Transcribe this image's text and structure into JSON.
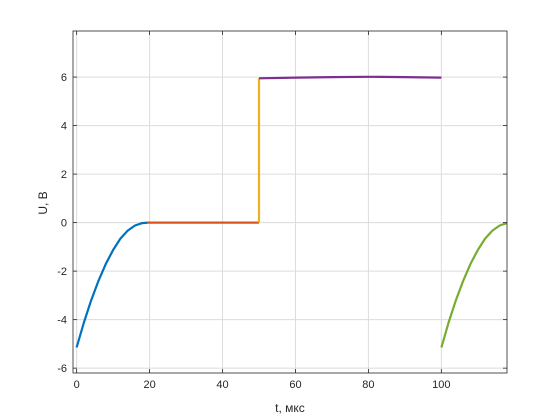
{
  "chart_data": {
    "type": "line",
    "xlabel": "t, мкс",
    "ylabel": "U, В",
    "xlim": [
      -1,
      118
    ],
    "ylim": [
      -6.2,
      7.9
    ],
    "xticks": [
      0,
      20,
      40,
      60,
      80,
      100
    ],
    "yticks": [
      -6,
      -4,
      -2,
      0,
      2,
      4,
      6
    ],
    "grid": true,
    "colors": {
      "blue": "#0072BD",
      "red": "#D95319",
      "yellow": "#EDB120",
      "purple": "#7E2F8E",
      "green": "#77AC30",
      "grid": "#dcdcdc",
      "axis": "#262626"
    },
    "series": [
      {
        "color": "blue",
        "x": [
          0,
          2,
          4,
          6,
          8,
          10,
          12,
          14,
          16,
          18,
          19.5
        ],
        "y": [
          -5.15,
          -4.12,
          -3.2,
          -2.4,
          -1.7,
          -1.13,
          -0.66,
          -0.33,
          -0.12,
          -0.02,
          0
        ]
      },
      {
        "color": "red",
        "x": [
          19.5,
          50
        ],
        "y": [
          0,
          0
        ]
      },
      {
        "color": "yellow",
        "x": [
          50,
          50
        ],
        "y": [
          0,
          5.95
        ]
      },
      {
        "color": "purple",
        "x": [
          50,
          60,
          70,
          80,
          90,
          100
        ],
        "y": [
          5.95,
          5.98,
          6.0,
          6.01,
          6.0,
          5.98
        ]
      },
      {
        "color": "green",
        "x": [
          100,
          102,
          104,
          106,
          108,
          110,
          112,
          114,
          116,
          118
        ],
        "y": [
          -5.15,
          -4.12,
          -3.2,
          -2.4,
          -1.7,
          -1.13,
          -0.66,
          -0.33,
          -0.12,
          -0.02
        ]
      }
    ]
  }
}
